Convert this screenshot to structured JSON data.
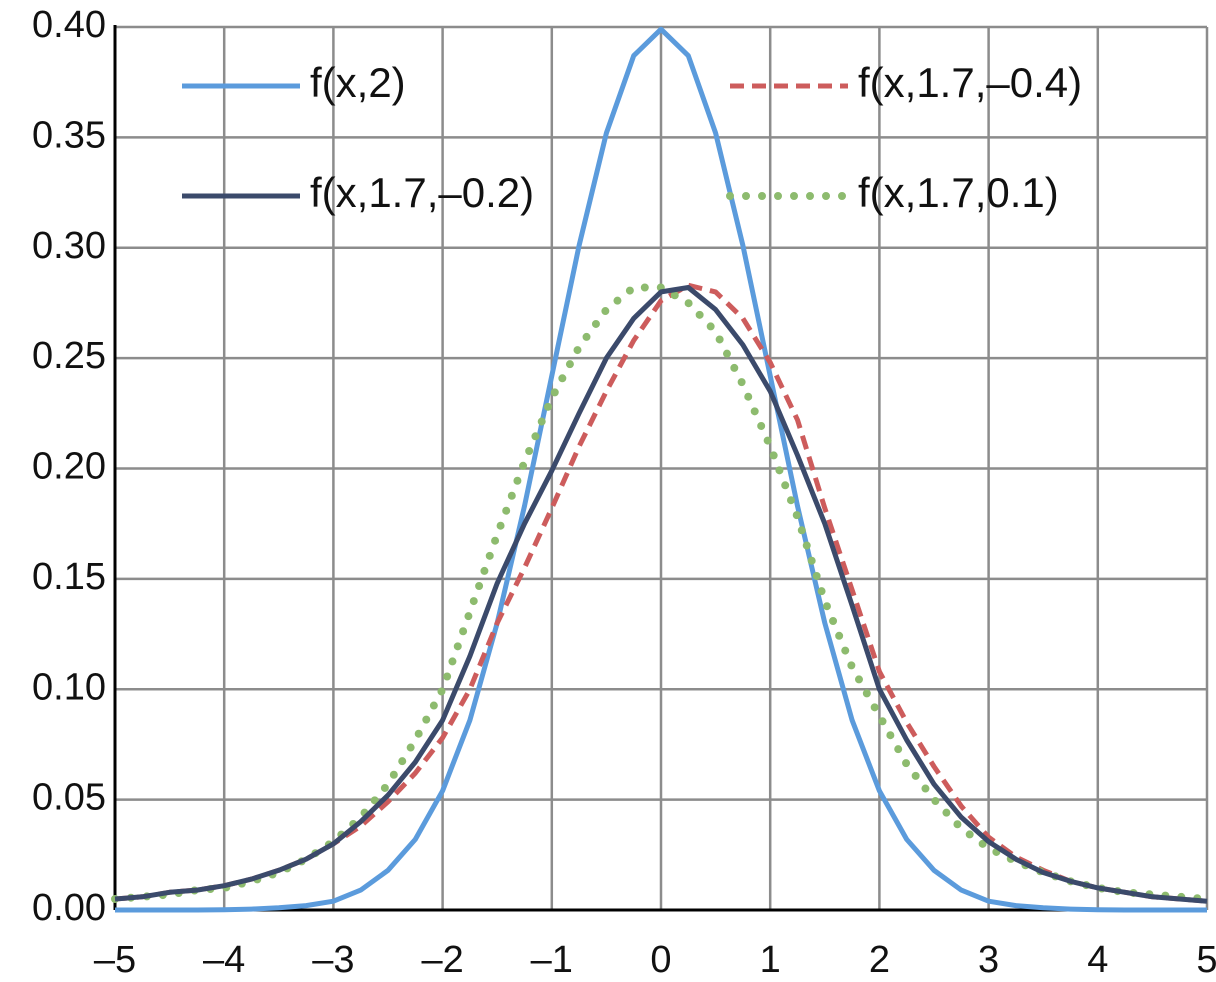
{
  "chart_data": {
    "type": "line",
    "x": [
      -5,
      -4.75,
      -4.5,
      -4.25,
      -4,
      -3.75,
      -3.5,
      -3.25,
      -3,
      -2.75,
      -2.5,
      -2.25,
      -2,
      -1.75,
      -1.5,
      -1.25,
      -1,
      -0.75,
      -0.5,
      -0.25,
      0,
      0.25,
      0.5,
      0.75,
      1,
      1.25,
      1.5,
      1.75,
      2,
      2.25,
      2.5,
      2.75,
      3,
      3.25,
      3.5,
      3.75,
      4,
      4.25,
      4.5,
      4.75,
      5
    ],
    "series": [
      {
        "name": "f(x,2)",
        "color": "#5b9bdc",
        "style": "solid",
        "values": [
          0,
          0,
          0,
          0,
          0.0001,
          0.0004,
          0.001,
          0.002,
          0.004,
          0.009,
          0.018,
          0.032,
          0.054,
          0.086,
          0.13,
          0.183,
          0.242,
          0.301,
          0.352,
          0.387,
          0.399,
          0.387,
          0.352,
          0.301,
          0.242,
          0.183,
          0.13,
          0.086,
          0.054,
          0.032,
          0.018,
          0.009,
          0.004,
          0.002,
          0.001,
          0.0004,
          0.0001,
          0,
          0,
          0,
          0
        ]
      },
      {
        "name": "f(x,1.7,–0.4)",
        "color": "#cd5c5c",
        "style": "dashed",
        "values": [
          0.005,
          0.006,
          0.008,
          0.009,
          0.011,
          0.014,
          0.018,
          0.023,
          0.03,
          0.038,
          0.049,
          0.062,
          0.078,
          0.1,
          0.13,
          0.155,
          0.182,
          0.21,
          0.235,
          0.258,
          0.276,
          0.283,
          0.28,
          0.268,
          0.248,
          0.222,
          0.182,
          0.145,
          0.108,
          0.085,
          0.065,
          0.047,
          0.033,
          0.024,
          0.018,
          0.013,
          0.01,
          0.008,
          0.006,
          0.005,
          0.004
        ]
      },
      {
        "name": "f(x,1.7,–0.2)",
        "color": "#3b4a6b",
        "style": "solid",
        "values": [
          0.005,
          0.006,
          0.008,
          0.009,
          0.011,
          0.014,
          0.018,
          0.023,
          0.03,
          0.04,
          0.052,
          0.067,
          0.086,
          0.115,
          0.148,
          0.175,
          0.199,
          0.225,
          0.25,
          0.268,
          0.28,
          0.282,
          0.272,
          0.256,
          0.235,
          0.206,
          0.175,
          0.138,
          0.1,
          0.077,
          0.057,
          0.042,
          0.031,
          0.023,
          0.017,
          0.013,
          0.01,
          0.008,
          0.006,
          0.005,
          0.004
        ]
      },
      {
        "name": "f(x,1.7,0.1)",
        "color": "#8dbb6e",
        "style": "dotted",
        "values": [
          0.005,
          0.006,
          0.007,
          0.009,
          0.01,
          0.013,
          0.017,
          0.023,
          0.031,
          0.042,
          0.057,
          0.077,
          0.1,
          0.135,
          0.17,
          0.203,
          0.232,
          0.255,
          0.272,
          0.282,
          0.282,
          0.275,
          0.262,
          0.238,
          0.21,
          0.178,
          0.14,
          0.11,
          0.088,
          0.066,
          0.05,
          0.037,
          0.028,
          0.022,
          0.017,
          0.013,
          0.01,
          0.008,
          0.007,
          0.006,
          0.005
        ]
      }
    ],
    "xlim": [
      -5,
      5
    ],
    "xticks": [
      {
        "value": -5,
        "label": "–5"
      },
      {
        "value": -4,
        "label": "–4"
      },
      {
        "value": -3,
        "label": "–3"
      },
      {
        "value": -2,
        "label": "–2"
      },
      {
        "value": -1,
        "label": "–1"
      },
      0,
      1,
      2,
      3,
      4,
      5
    ],
    "ylim": [
      0,
      0.4
    ],
    "yticks": [
      {
        "value": 0,
        "label": "0.00"
      },
      {
        "value": 0.05,
        "label": "0.05"
      },
      {
        "value": 0.1,
        "label": "0.10"
      },
      {
        "value": 0.15,
        "label": "0.15"
      },
      {
        "value": 0.2,
        "label": "0.20"
      },
      {
        "value": 0.25,
        "label": "0.25"
      },
      {
        "value": 0.3,
        "label": "0.30"
      },
      {
        "value": 0.35,
        "label": "0.35"
      },
      {
        "value": 0.4,
        "label": "0.40"
      }
    ],
    "grid": true
  }
}
